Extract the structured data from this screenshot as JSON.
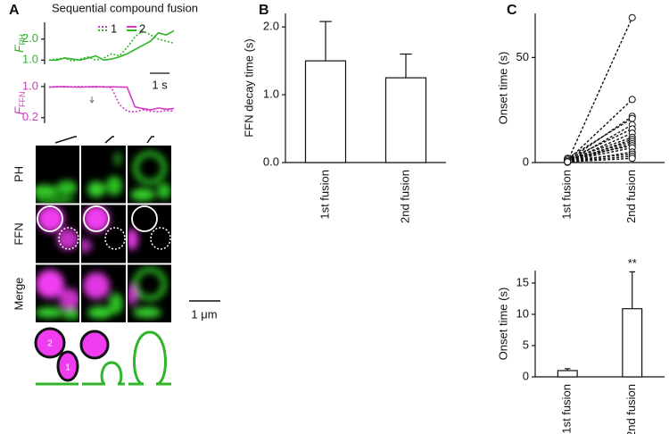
{
  "panel_labels": [
    "A",
    "B",
    "C"
  ],
  "chart_data": [
    {
      "type": "line",
      "title": "Sequential compound fusion",
      "ylabel": "F",
      "ylabel_sub": "PH",
      "label_color": "#2fb52a",
      "x": [
        0,
        0.4,
        0.8,
        1.2,
        1.6,
        2.0,
        2.4,
        2.8,
        3.2,
        3.6,
        4.0,
        4.4,
        4.8,
        5.2,
        5.6,
        6.0,
        6.4
      ],
      "xlim": [
        0,
        6.4
      ],
      "ylim": [
        0.8,
        2.8
      ],
      "yticks": [
        {
          "value": 1,
          "label": "1.0"
        },
        {
          "value": 2,
          "label": "2.0"
        }
      ],
      "series": [
        {
          "name": "1",
          "color": "#2fb52a",
          "line_style": "dotted",
          "values": [
            1.0,
            1.05,
            1.1,
            0.95,
            1.05,
            1.15,
            1.0,
            1.1,
            1.3,
            1.2,
            1.6,
            2.1,
            2.4,
            2.2,
            2.0,
            1.9,
            1.8
          ]
        },
        {
          "name": "2",
          "color": "#2fb52a",
          "line_style": "solid",
          "values": [
            1.0,
            1.0,
            1.1,
            1.05,
            1.0,
            1.1,
            1.2,
            1.0,
            1.05,
            1.15,
            1.3,
            1.5,
            1.7,
            1.9,
            2.3,
            2.2,
            2.4
          ]
        }
      ],
      "legend_colors": [
        "#d23bc4",
        "#2fb52a"
      ],
      "scale_bar": {
        "value": 1,
        "label": "1 s"
      }
    },
    {
      "type": "line",
      "ylabel": "F",
      "ylabel_sub": "FFN",
      "label_color": "#d23bc4",
      "log_scale": true,
      "x": [
        0,
        0.4,
        0.8,
        1.2,
        1.6,
        2.0,
        2.4,
        2.8,
        3.2,
        3.6,
        4.0,
        4.4,
        4.8,
        5.2,
        5.6,
        6.0,
        6.4
      ],
      "xlim": [
        0,
        6.4
      ],
      "ylim": [
        0.15,
        1.2
      ],
      "yticks": [
        {
          "value": 1,
          "label": "1.0"
        },
        {
          "value": 0.2,
          "label": "0.2"
        }
      ],
      "series": [
        {
          "name": "1",
          "color": "#d23bc4",
          "line_style": "dotted",
          "values": [
            0.98,
            1.0,
            0.97,
            0.99,
            1.0,
            0.98,
            0.97,
            1.0,
            0.95,
            0.4,
            0.28,
            0.27,
            0.3,
            0.28,
            0.27,
            0.29,
            0.28
          ]
        },
        {
          "name": "2",
          "color": "#d23bc4",
          "line_style": "solid",
          "values": [
            0.97,
            0.99,
            1.0,
            0.98,
            0.97,
            0.99,
            1.0,
            0.98,
            0.99,
            0.98,
            0.97,
            0.35,
            0.32,
            0.3,
            0.33,
            0.31,
            0.32
          ]
        }
      ]
    },
    {
      "type": "bar",
      "ylabel": "FFN decay time (s)",
      "categories": [
        "1st fusion",
        "2nd fusion"
      ],
      "values": [
        1.5,
        1.25
      ],
      "errors": [
        0.58,
        0.35
      ],
      "color": "#ffffff",
      "ylim": [
        0,
        2.2
      ],
      "yticks": [
        {
          "value": 0,
          "label": "0.0"
        },
        {
          "value": 1,
          "label": "1.0"
        },
        {
          "value": 2,
          "label": "2.0"
        }
      ]
    },
    {
      "type": "paired",
      "ylabel": "Onset time (s)",
      "categories": [
        "1st fusion",
        "2nd fusion"
      ],
      "pairs": [
        [
          0.5,
          69
        ],
        [
          1.0,
          30
        ],
        [
          0.8,
          22
        ],
        [
          2.0,
          21
        ],
        [
          0.3,
          18
        ],
        [
          1.5,
          16
        ],
        [
          0.6,
          14
        ],
        [
          1.2,
          12
        ],
        [
          0.2,
          11
        ],
        [
          0.9,
          10
        ],
        [
          0.4,
          9
        ],
        [
          1.8,
          8
        ],
        [
          0.7,
          7
        ],
        [
          0.1,
          5
        ],
        [
          1.1,
          4
        ],
        [
          0.5,
          3
        ],
        [
          0.3,
          2
        ]
      ],
      "ylim": [
        0,
        71
      ],
      "yticks": [
        0,
        50
      ]
    },
    {
      "type": "bar",
      "ylabel": "Onset time (s)",
      "categories": [
        "1st fusion",
        "2nd fusion"
      ],
      "values": [
        1.0,
        10.9
      ],
      "errors": [
        0.3,
        5.9
      ],
      "color": "#ffffff",
      "annotations": [
        null,
        "**"
      ],
      "ylim": [
        0,
        17
      ],
      "yticks": [
        0,
        5,
        10,
        15
      ]
    }
  ],
  "images": {
    "rows": [
      "PH",
      "FFN",
      "Merge"
    ],
    "scale_bar": "1 μm",
    "vesicle_labels": [
      "2",
      "1"
    ]
  }
}
